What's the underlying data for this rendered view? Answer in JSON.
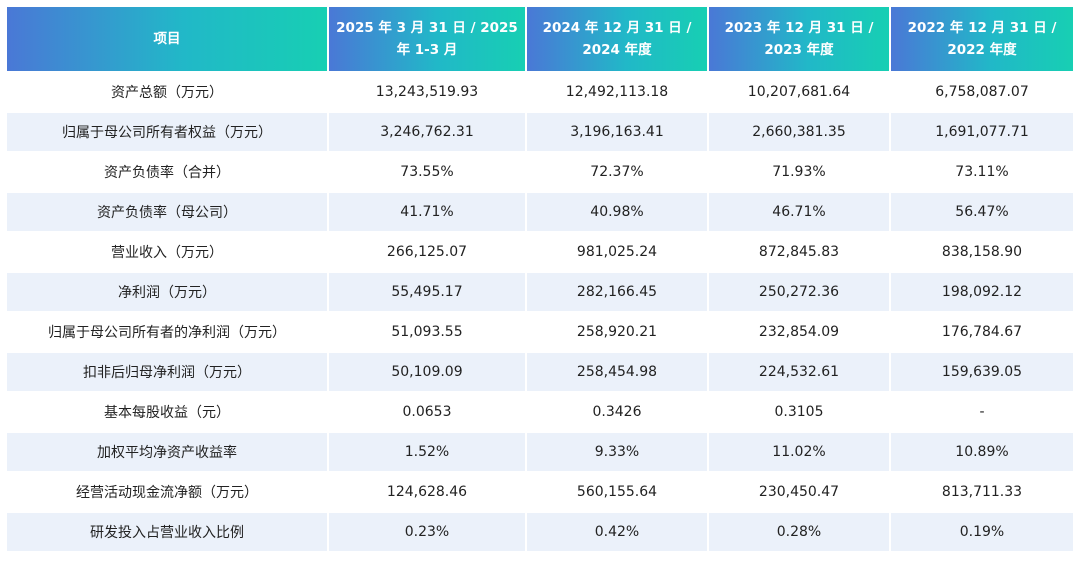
{
  "table": {
    "headers": [
      "项目",
      "2025 年 3 月 31 日 / 2025 年 1-3 月",
      "2024 年 12 月 31 日 / 2024 年度",
      "2023 年 12 月 31 日 / 2023 年度",
      "2022 年 12 月 31 日 / 2022 年度"
    ],
    "rows": [
      [
        "资产总额（万元）",
        "13,243,519.93",
        "12,492,113.18",
        "10,207,681.64",
        "6,758,087.07"
      ],
      [
        "归属于母公司所有者权益（万元）",
        "3,246,762.31",
        "3,196,163.41",
        "2,660,381.35",
        "1,691,077.71"
      ],
      [
        "资产负债率（合并）",
        "73.55%",
        "72.37%",
        "71.93%",
        "73.11%"
      ],
      [
        "资产负债率（母公司）",
        "41.71%",
        "40.98%",
        "46.71%",
        "56.47%"
      ],
      [
        "营业收入（万元）",
        "266,125.07",
        "981,025.24",
        "872,845.83",
        "838,158.90"
      ],
      [
        "净利润（万元）",
        "55,495.17",
        "282,166.45",
        "250,272.36",
        "198,092.12"
      ],
      [
        "归属于母公司所有者的净利润（万元）",
        "51,093.55",
        "258,920.21",
        "232,854.09",
        "176,784.67"
      ],
      [
        "扣非后归母净利润（万元）",
        "50,109.09",
        "258,454.98",
        "224,532.61",
        "159,639.05"
      ],
      [
        "基本每股收益（元）",
        "0.0653",
        "0.3426",
        "0.3105",
        "-"
      ],
      [
        "加权平均净资产收益率",
        "1.52%",
        "9.33%",
        "11.02%",
        "10.89%"
      ],
      [
        "经营活动现金流净额（万元）",
        "124,628.46",
        "560,155.64",
        "230,450.47",
        "813,711.33"
      ],
      [
        "研发投入占营业收入比例",
        "0.23%",
        "0.42%",
        "0.28%",
        "0.19%"
      ]
    ]
  },
  "colors": {
    "header_gradient_start": "#4a78d6",
    "header_gradient_end": "#17cfb3",
    "row_alt": "#ebf1fa"
  }
}
